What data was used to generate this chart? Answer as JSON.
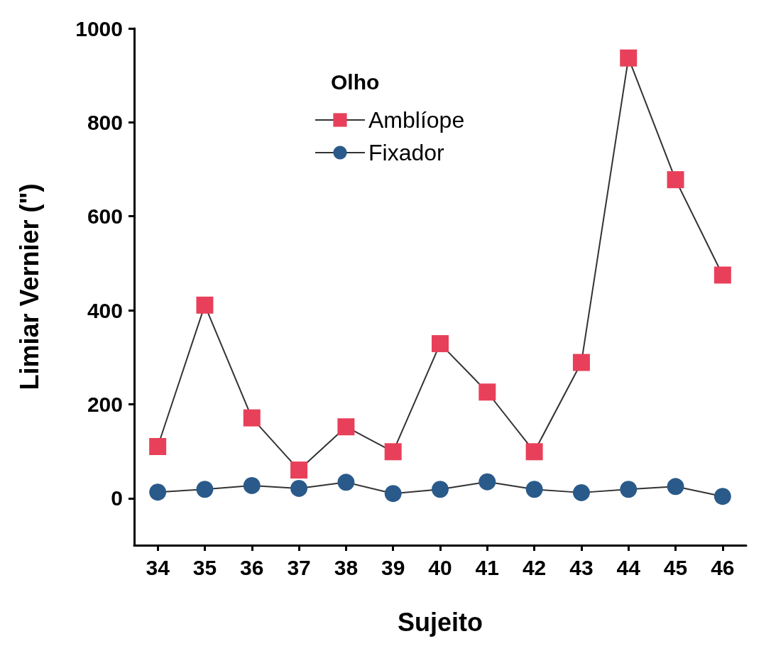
{
  "chart_data": {
    "type": "line",
    "xlabel": "Sujeito",
    "ylabel": "Limiar Vernier (\")",
    "legend_title": "Olho",
    "legend": "top",
    "grid": false,
    "categories": [
      "34",
      "35",
      "36",
      "37",
      "38",
      "39",
      "40",
      "41",
      "42",
      "43",
      "44",
      "45",
      "46"
    ],
    "ylim": [
      -100,
      1000
    ],
    "yticks": [
      0,
      200,
      400,
      600,
      800,
      1000
    ],
    "series": [
      {
        "name": "Amblíope",
        "color": "#e8405a",
        "marker": "square",
        "values": [
          110,
          411,
          171,
          60,
          152,
          99,
          329,
          226,
          99,
          289,
          937,
          678,
          475
        ]
      },
      {
        "name": "Fixador",
        "color": "#2a5a8a",
        "marker": "circle",
        "values": [
          13,
          19,
          27,
          21,
          34,
          10,
          19,
          35,
          19,
          12,
          19,
          25,
          4
        ]
      }
    ]
  }
}
